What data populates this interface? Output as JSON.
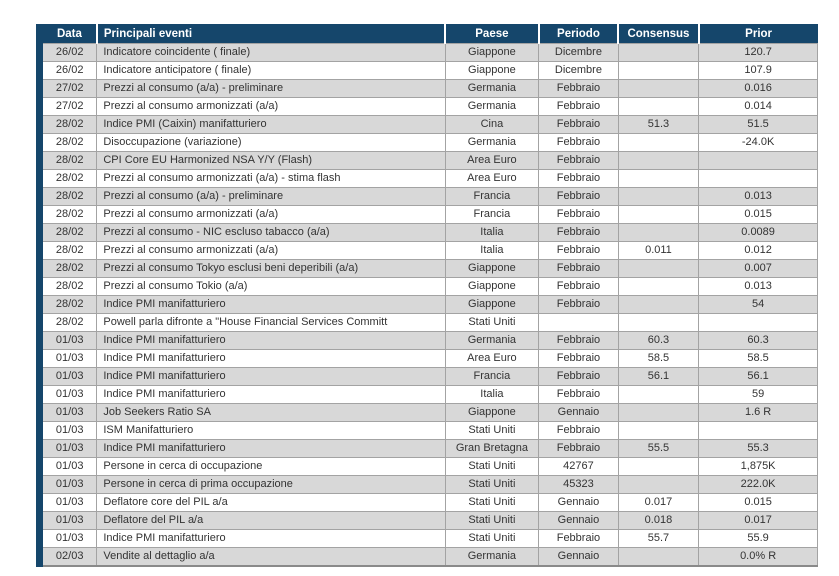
{
  "table": {
    "columns": [
      "Data",
      "Principali eventi",
      "Paese",
      "Periodo",
      "Consensus",
      "Prior"
    ],
    "column_keys": [
      "data",
      "evento",
      "paese",
      "periodo",
      "consensus",
      "prior"
    ],
    "rows": [
      [
        "26/02",
        "Indicatore coincidente ( finale)",
        "Giappone",
        "Dicembre",
        "",
        "120.7"
      ],
      [
        "26/02",
        "Indicatore anticipatore ( finale)",
        "Giappone",
        "Dicembre",
        "",
        "107.9"
      ],
      [
        "27/02",
        "Prezzi al consumo (a/a) - preliminare",
        "Germania",
        "Febbraio",
        "",
        "0.016"
      ],
      [
        "27/02",
        "Prezzi al consumo armonizzati (a/a)",
        "Germania",
        "Febbraio",
        "",
        "0.014"
      ],
      [
        "28/02",
        "Indice PMI (Caixin) manifatturiero",
        "Cina",
        "Febbraio",
        "51.3",
        "51.5"
      ],
      [
        "28/02",
        "Disoccupazione (variazione)",
        "Germania",
        "Febbraio",
        "",
        "-24.0K"
      ],
      [
        "28/02",
        "CPI Core EU Harmonized NSA Y/Y (Flash)",
        "Area Euro",
        "Febbraio",
        "",
        ""
      ],
      [
        "28/02",
        "Prezzi al consumo armonizzati (a/a) - stima flash",
        "Area Euro",
        "Febbraio",
        "",
        ""
      ],
      [
        "28/02",
        "Prezzi al consumo (a/a) - preliminare",
        "Francia",
        "Febbraio",
        "",
        "0.013"
      ],
      [
        "28/02",
        "Prezzi al consumo armonizzati (a/a)",
        "Francia",
        "Febbraio",
        "",
        "0.015"
      ],
      [
        "28/02",
        "Prezzi al consumo - NIC escluso tabacco (a/a)",
        "Italia",
        "Febbraio",
        "",
        "0.0089"
      ],
      [
        "28/02",
        "Prezzi al consumo armonizzati (a/a)",
        "Italia",
        "Febbraio",
        "0.011",
        "0.012"
      ],
      [
        "28/02",
        "Prezzi al consumo Tokyo esclusi beni deperibili (a/a)",
        "Giappone",
        "Febbraio",
        "",
        "0.007"
      ],
      [
        "28/02",
        "Prezzi al consumo Tokio (a/a)",
        "Giappone",
        "Febbraio",
        "",
        "0.013"
      ],
      [
        "28/02",
        "Indice PMI manifatturiero",
        "Giappone",
        "Febbraio",
        "",
        "54"
      ],
      [
        "28/02",
        "Powell parla difronte a \"House Financial Services Committ",
        "Stati Uniti",
        "",
        "",
        ""
      ],
      [
        "01/03",
        "Indice PMI manifatturiero",
        "Germania",
        "Febbraio",
        "60.3",
        "60.3"
      ],
      [
        "01/03",
        "Indice PMI manifatturiero",
        "Area Euro",
        "Febbraio",
        "58.5",
        "58.5"
      ],
      [
        "01/03",
        "Indice PMI manifatturiero",
        "Francia",
        "Febbraio",
        "56.1",
        "56.1"
      ],
      [
        "01/03",
        "Indice PMI manifatturiero",
        "Italia",
        "Febbraio",
        "",
        "59"
      ],
      [
        "01/03",
        "Job Seekers Ratio SA",
        "Giappone",
        "Gennaio",
        "",
        "1.6 R"
      ],
      [
        "01/03",
        "ISM Manifatturiero",
        "Stati Uniti",
        "Febbraio",
        "",
        ""
      ],
      [
        "01/03",
        "Indice PMI manifatturiero",
        "Gran Bretagna",
        "Febbraio",
        "55.5",
        "55.3"
      ],
      [
        "01/03",
        "Persone in cerca di occupazione",
        "Stati Uniti",
        "42767",
        "",
        "1,875K"
      ],
      [
        "01/03",
        "Persone in cerca di prima occupazione",
        "Stati Uniti",
        "45323",
        "",
        "222.0K"
      ],
      [
        "01/03",
        "Deflatore core del PIL a/a",
        "Stati Uniti",
        "Gennaio",
        "0.017",
        "0.015"
      ],
      [
        "01/03",
        "Deflatore del PIL a/a",
        "Stati Uniti",
        "Gennaio",
        "0.018",
        "0.017"
      ],
      [
        "01/03",
        "Indice PMI manifatturiero",
        "Stati Uniti",
        "Febbraio",
        "55.7",
        "55.9"
      ],
      [
        "02/03",
        "Vendite al dettaglio a/a",
        "Germania",
        "Gennaio",
        "",
        "0.0% R"
      ]
    ],
    "colors": {
      "header_bg": "#15466b",
      "header_text": "#ffffff",
      "row_alt_bg": "#d8d8d8",
      "row_bg": "#ffffff",
      "grid_line": "#a3a3a3",
      "left_bar": "#15466b"
    }
  }
}
